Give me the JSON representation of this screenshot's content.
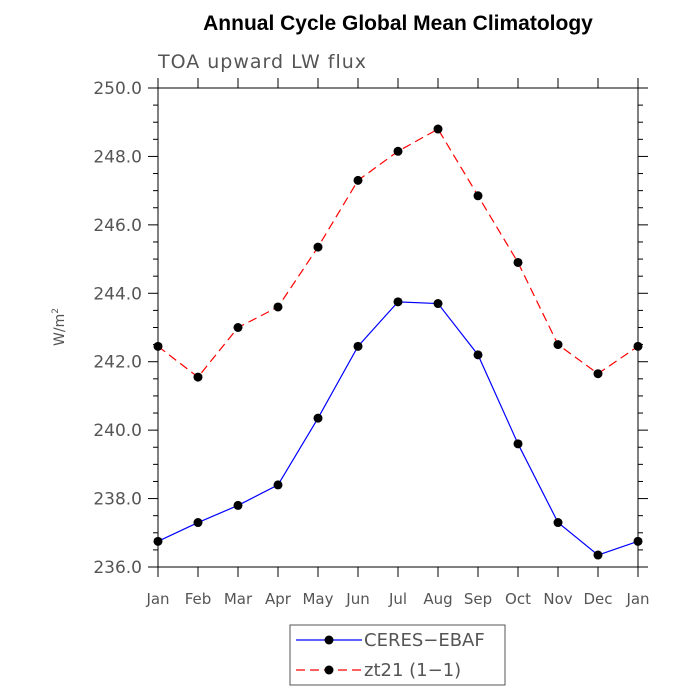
{
  "chart_data": {
    "type": "line",
    "title": "Annual Cycle Global Mean Climatology",
    "subtitle": "TOA upward LW flux",
    "ylabel_base": "W/m",
    "ylabel_sup": "2",
    "xlabel": "",
    "categories": [
      "Jan",
      "Feb",
      "Mar",
      "Apr",
      "May",
      "Jun",
      "Jul",
      "Aug",
      "Sep",
      "Oct",
      "Nov",
      "Dec",
      "Jan"
    ],
    "ylim": [
      236.0,
      250.0
    ],
    "yticks": [
      "236.0",
      "238.0",
      "240.0",
      "242.0",
      "244.0",
      "246.0",
      "248.0",
      "250.0"
    ],
    "grid": false,
    "legend_position": "bottom",
    "series": [
      {
        "name": "CERES−EBAF",
        "color": "#0000ff",
        "dash": "solid",
        "marker": "circle",
        "values": [
          236.75,
          237.3,
          237.8,
          238.4,
          240.35,
          242.45,
          243.75,
          243.7,
          242.2,
          239.6,
          237.3,
          236.35,
          236.75
        ]
      },
      {
        "name": "zt21 (1−1)",
        "color": "#ff0000",
        "dash": "dashed",
        "marker": "circle",
        "values": [
          242.45,
          241.55,
          243.0,
          243.6,
          245.35,
          247.3,
          248.15,
          248.8,
          246.85,
          244.9,
          242.5,
          241.65,
          242.45
        ]
      }
    ]
  }
}
